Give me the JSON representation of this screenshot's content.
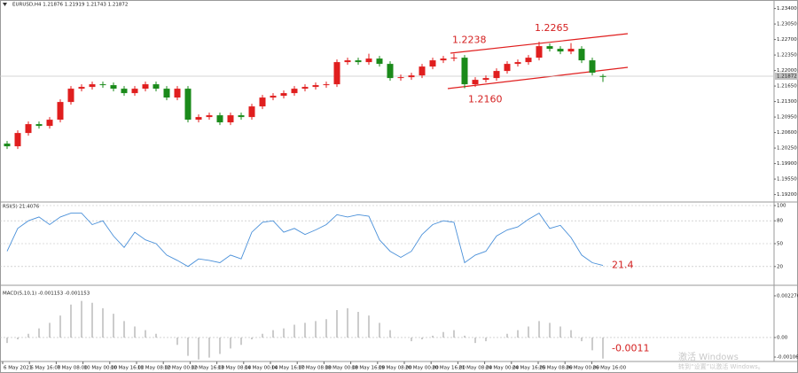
{
  "chart_data": [
    {
      "type": "candlestick",
      "title": "EURUSD,H4  1.21876 1.21919 1.21743 1.21872",
      "up_color": "#e01e1e",
      "down_color": "#1a8a1a",
      "open": [
        1.2035,
        1.2029,
        1.2059,
        1.2079,
        1.2075,
        1.2089,
        1.2129,
        1.2159,
        1.2163,
        1.2169,
        1.2167,
        1.2159,
        1.2149,
        1.2159,
        1.2169,
        1.2159,
        1.2139,
        1.2159,
        1.2089,
        1.2095,
        1.2099,
        1.2083,
        1.2099,
        1.2095,
        1.2119,
        1.2139,
        1.2143,
        1.2149,
        1.2159,
        1.2163,
        1.2167,
        1.2169,
        1.2219,
        1.2223,
        1.2219,
        1.2227,
        1.2215,
        1.2183,
        1.2185,
        1.2189,
        1.2209,
        1.2223,
        1.2227,
        1.2229,
        1.2169,
        1.2179,
        1.2183,
        1.2199,
        1.2215,
        1.2219,
        1.2229,
        1.2255,
        1.2249,
        1.2243,
        1.2249,
        1.2223,
        1.21876
      ],
      "high": [
        1.2041,
        1.2065,
        1.2085,
        1.2085,
        1.2095,
        1.2135,
        1.2165,
        1.2169,
        1.2175,
        1.2175,
        1.2173,
        1.2165,
        1.2165,
        1.2175,
        1.2175,
        1.2165,
        1.2165,
        1.2165,
        1.2101,
        1.2105,
        1.2105,
        1.2105,
        1.2105,
        1.2125,
        1.2145,
        1.2149,
        1.2155,
        1.2165,
        1.2169,
        1.2173,
        1.2175,
        1.2225,
        1.2229,
        1.2229,
        1.2238,
        1.2233,
        1.2221,
        1.2191,
        1.2195,
        1.2215,
        1.2229,
        1.2233,
        1.2238,
        1.2235,
        1.2185,
        1.2189,
        1.2205,
        1.2221,
        1.2225,
        1.2235,
        1.2265,
        1.2261,
        1.2255,
        1.2262,
        1.2255,
        1.2229,
        1.21919
      ],
      "low": [
        1.2023,
        1.2023,
        1.2053,
        1.2069,
        1.2069,
        1.2083,
        1.2123,
        1.2153,
        1.2157,
        1.2161,
        1.2153,
        1.2143,
        1.2143,
        1.2153,
        1.2153,
        1.2133,
        1.2133,
        1.2083,
        1.2083,
        1.2089,
        1.2077,
        1.2077,
        1.2089,
        1.2089,
        1.2113,
        1.2133,
        1.2137,
        1.2143,
        1.2153,
        1.2157,
        1.2161,
        1.2163,
        1.2213,
        1.2213,
        1.2213,
        1.2209,
        1.2177,
        1.2177,
        1.2179,
        1.2183,
        1.2203,
        1.2217,
        1.2221,
        1.216,
        1.2163,
        1.2173,
        1.2177,
        1.2193,
        1.2209,
        1.2213,
        1.2223,
        1.2243,
        1.2237,
        1.2237,
        1.2217,
        1.2189,
        1.21743
      ],
      "close": [
        1.2029,
        1.2059,
        1.2079,
        1.2075,
        1.2089,
        1.2129,
        1.2159,
        1.2163,
        1.2169,
        1.2167,
        1.2159,
        1.2149,
        1.2159,
        1.2169,
        1.2159,
        1.2139,
        1.2159,
        1.2089,
        1.2095,
        1.2099,
        1.2083,
        1.2099,
        1.2095,
        1.2119,
        1.2139,
        1.2143,
        1.2149,
        1.2159,
        1.2163,
        1.2167,
        1.2169,
        1.2219,
        1.2223,
        1.2219,
        1.2227,
        1.2215,
        1.2183,
        1.2185,
        1.2189,
        1.2209,
        1.2223,
        1.2227,
        1.2229,
        1.2169,
        1.2179,
        1.2183,
        1.2199,
        1.2215,
        1.2219,
        1.2229,
        1.2255,
        1.2249,
        1.2243,
        1.2249,
        1.2223,
        1.2195,
        1.21872
      ],
      "ylim": [
        1.19032,
        1.23592
      ],
      "yticks": [
        {
          "value": 1.234,
          "label": "1.23400"
        },
        {
          "value": 1.2305,
          "label": "1.23050"
        },
        {
          "value": 1.227,
          "label": "1.22700"
        },
        {
          "value": 1.2235,
          "label": "1.22350"
        },
        {
          "value": 1.22,
          "label": "1.22000"
        },
        {
          "value": 1.2165,
          "label": "1.21650"
        },
        {
          "value": 1.213,
          "label": "1.21300"
        },
        {
          "value": 1.2095,
          "label": "1.20950"
        },
        {
          "value": 1.206,
          "label": "1.20600"
        },
        {
          "value": 1.2025,
          "label": "1.20250"
        },
        {
          "value": 1.199,
          "label": "1.19900"
        },
        {
          "value": 1.1955,
          "label": "1.19550"
        },
        {
          "value": 1.192,
          "label": "1.19200"
        }
      ],
      "annotations": [
        {
          "value": 1.2238,
          "label": "1.2238"
        },
        {
          "value": 1.2265,
          "label": "1.2265"
        },
        {
          "value": 1.216,
          "label": "1.2160"
        }
      ]
    },
    {
      "type": "line",
      "title": "RSI(5) 21.4076",
      "color": "#4a90d9",
      "values": [
        40,
        70,
        80,
        85,
        75,
        85,
        90,
        90,
        75,
        80,
        60,
        45,
        65,
        55,
        50,
        35,
        28,
        20,
        30,
        28,
        25,
        35,
        30,
        65,
        78,
        80,
        65,
        70,
        62,
        68,
        75,
        88,
        85,
        88,
        86,
        55,
        40,
        32,
        40,
        62,
        75,
        80,
        78,
        25,
        35,
        40,
        60,
        68,
        72,
        82,
        90,
        70,
        74,
        58,
        35,
        25,
        21.4076
      ],
      "ylim": [
        0,
        100
      ],
      "yticks": [
        100,
        80,
        50,
        20
      ],
      "grid": true,
      "annotations": [
        {
          "value": 21.4,
          "label": "21.4"
        }
      ]
    },
    {
      "type": "bar",
      "title": "MACD(5,10,1) -0.001153 -0.001153",
      "color": "#9a9a9a",
      "values": [
        -0.0003,
        -0.0001,
        0.0002,
        0.0005,
        0.0008,
        0.0012,
        0.0018,
        0.002,
        0.0019,
        0.0016,
        0.0013,
        0.0009,
        0.0006,
        0.0004,
        0.0002,
        0,
        -0.0004,
        -0.001,
        -0.0012,
        -0.0011,
        -0.0009,
        -0.0006,
        -0.0004,
        -0.0001,
        0.0002,
        0.0004,
        0.0005,
        0.0007,
        0.0008,
        0.0009,
        0.001,
        0.0015,
        0.0016,
        0.0014,
        0.0012,
        0.0008,
        0.0004,
        0,
        -0.0002,
        -0.0001,
        0.0001,
        0.0003,
        0.0004,
        0.0001,
        -0.0003,
        -0.0002,
        0,
        0.0002,
        0.0004,
        0.0006,
        0.0009,
        0.0008,
        0.0006,
        0.0004,
        -0.0002,
        -0.0007,
        -0.001153
      ],
      "ylim": [
        -0.00131,
        0.00266
      ],
      "yticks": [
        0.002276,
        {
          "value": 0,
          "label": "0.00"
        },
        -0.001069
      ],
      "annotations": [
        {
          "value": -0.0011,
          "label": "-0.0011"
        }
      ]
    }
  ],
  "time_labels": [
    "6 May 2021",
    "6 May 16:00",
    "7 May 08:00",
    "10 May 00:00",
    "10 May 16:00",
    "11 May 08:00",
    "12 May 00:00",
    "12 May 16:00",
    "13 May 08:00",
    "14 May 00:00",
    "14 May 16:00",
    "17 May 08:00",
    "18 May 00:00",
    "18 May 16:00",
    "19 May 08:00",
    "20 May 00:00",
    "20 May 16:00",
    "21 May 08:00",
    "24 May 00:00",
    "24 May 16:00",
    "25 May 08:00",
    "26 May 00:00",
    "26 May 16:00"
  ],
  "watermark": [
    "激活 Windows",
    "转到“设置”以激活 Windows。"
  ]
}
